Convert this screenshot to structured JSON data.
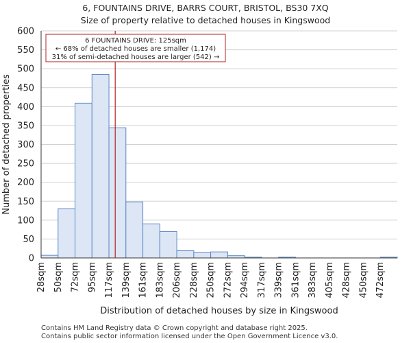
{
  "chart_data": {
    "type": "bar",
    "title": "6, FOUNTAINS DRIVE, BARRS COURT, BRISTOL, BS30 7XQ",
    "subtitle": "Size of property relative to detached houses in Kingswood",
    "xlabel": "Distribution of detached houses by size in Kingswood",
    "ylabel": "Number of detached properties",
    "categories": [
      "28sqm",
      "50sqm",
      "72sqm",
      "95sqm",
      "117sqm",
      "139sqm",
      "161sqm",
      "183sqm",
      "206sqm",
      "228sqm",
      "250sqm",
      "272sqm",
      "294sqm",
      "317sqm",
      "339sqm",
      "361sqm",
      "383sqm",
      "405sqm",
      "428sqm",
      "450sqm",
      "472sqm"
    ],
    "values": [
      7,
      130,
      409,
      485,
      344,
      148,
      90,
      70,
      19,
      14,
      16,
      6,
      2,
      0,
      2,
      0,
      0,
      0,
      0,
      0,
      2
    ],
    "ylim": [
      0,
      600
    ],
    "yticks": [
      0,
      50,
      100,
      150,
      200,
      250,
      300,
      350,
      400,
      450,
      500,
      550,
      600
    ],
    "marker_value": 125,
    "bin_start": 28,
    "bin_width": 22.2,
    "annotation": {
      "line1": "6 FOUNTAINS DRIVE: 125sqm",
      "line2": "← 68% of detached houses are smaller (1,174)",
      "line3": "31% of semi-detached houses are larger (542) →"
    },
    "colors": {
      "bar_fill": "#dce6f5",
      "bar_stroke": "#5b86c5",
      "marker": "#b22222",
      "grid": "#d0d0d0"
    }
  },
  "footer": {
    "line1": "Contains HM Land Registry data © Crown copyright and database right 2025.",
    "line2": "Contains public sector information licensed under the Open Government Licence v3.0."
  }
}
